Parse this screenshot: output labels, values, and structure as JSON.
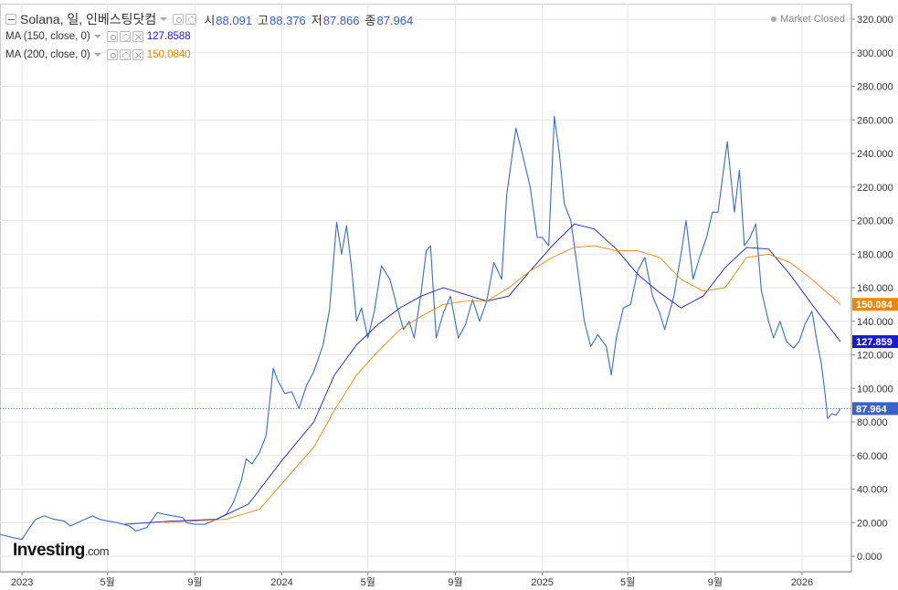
{
  "header": {
    "symbol_line": "Solana, 일, 인베스팅닷컴",
    "ohlc": [
      {
        "key": "시",
        "value": "88.091"
      },
      {
        "key": "고",
        "value": "88.376"
      },
      {
        "key": "저",
        "value": "87.866"
      },
      {
        "key": "종",
        "value": "87.964"
      }
    ],
    "market_status": "Market Closed"
  },
  "indicators": [
    {
      "label": "MA (150, close, 0)",
      "value": "127.8588",
      "color": "#1a1acc"
    },
    {
      "label": "MA (200, close, 0)",
      "value": "150.0840",
      "color": "#e8890c"
    }
  ],
  "price_tags": [
    {
      "value": "150.084",
      "y": 150.084,
      "color": "#e8890c"
    },
    {
      "value": "127.859",
      "y": 127.859,
      "color": "#1a1acc"
    },
    {
      "value": "87.964",
      "y": 87.964,
      "color": "#3b62c8"
    }
  ],
  "logo": {
    "brand": "Investing",
    "suffix": ".com"
  },
  "colors": {
    "price": "#3b6cc8",
    "ma150": "#1a1acc",
    "ma200": "#e8890c",
    "grid": "#e6e6e6"
  },
  "chart_data": {
    "type": "line",
    "ylim": [
      -10,
      330
    ],
    "y_ticks": [
      "0.000",
      "20.000",
      "40.000",
      "60.000",
      "80.000",
      "100.000",
      "120.000",
      "140.000",
      "160.000",
      "180.000",
      "200.000",
      "220.000",
      "240.000",
      "260.000",
      "280.000",
      "300.000",
      "320.000"
    ],
    "y_tick_values": [
      0,
      20,
      40,
      60,
      80,
      100,
      120,
      140,
      160,
      180,
      200,
      220,
      240,
      260,
      280,
      300,
      320
    ],
    "x_ticks": [
      {
        "label": "2023",
        "date": "2023-01-01"
      },
      {
        "label": "5월",
        "date": "2023-05-01"
      },
      {
        "label": "9월",
        "date": "2023-09-01"
      },
      {
        "label": "2024",
        "date": "2024-01-01"
      },
      {
        "label": "5월",
        "date": "2024-05-01"
      },
      {
        "label": "9월",
        "date": "2024-09-01"
      },
      {
        "label": "2025",
        "date": "2025-01-01"
      },
      {
        "label": "5월",
        "date": "2025-05-01"
      },
      {
        "label": "9월",
        "date": "2025-09-01"
      },
      {
        "label": "2026",
        "date": "2026-01-01"
      }
    ],
    "xlim": [
      "2022-12-01",
      "2026-02-24"
    ],
    "grid": true,
    "series": [
      {
        "key": "price",
        "points": [
          [
            "2022-12-01",
            13
          ],
          [
            "2022-12-20",
            11
          ],
          [
            "2023-01-01",
            10
          ],
          [
            "2023-01-10",
            16
          ],
          [
            "2023-01-20",
            22
          ],
          [
            "2023-02-01",
            24
          ],
          [
            "2023-02-15",
            22
          ],
          [
            "2023-03-01",
            21
          ],
          [
            "2023-03-10",
            18
          ],
          [
            "2023-03-25",
            21
          ],
          [
            "2023-04-10",
            24
          ],
          [
            "2023-04-20",
            22
          ],
          [
            "2023-05-01",
            21
          ],
          [
            "2023-05-15",
            20
          ],
          [
            "2023-06-01",
            18
          ],
          [
            "2023-06-10",
            15
          ],
          [
            "2023-06-25",
            17
          ],
          [
            "2023-07-10",
            26
          ],
          [
            "2023-07-20",
            25
          ],
          [
            "2023-08-01",
            24
          ],
          [
            "2023-08-15",
            23
          ],
          [
            "2023-08-20",
            20
          ],
          [
            "2023-09-01",
            19
          ],
          [
            "2023-09-15",
            19
          ],
          [
            "2023-10-01",
            22
          ],
          [
            "2023-10-15",
            25
          ],
          [
            "2023-10-25",
            32
          ],
          [
            "2023-11-05",
            45
          ],
          [
            "2023-11-12",
            58
          ],
          [
            "2023-11-20",
            55
          ],
          [
            "2023-12-01",
            62
          ],
          [
            "2023-12-10",
            72
          ],
          [
            "2023-12-20",
            112
          ],
          [
            "2023-12-26",
            105
          ],
          [
            "2024-01-05",
            97
          ],
          [
            "2024-01-15",
            98
          ],
          [
            "2024-01-25",
            88
          ],
          [
            "2024-02-05",
            102
          ],
          [
            "2024-02-15",
            110
          ],
          [
            "2024-02-28",
            126
          ],
          [
            "2024-03-08",
            147
          ],
          [
            "2024-03-18",
            199
          ],
          [
            "2024-03-25",
            180
          ],
          [
            "2024-04-01",
            197
          ],
          [
            "2024-04-08",
            172
          ],
          [
            "2024-04-15",
            140
          ],
          [
            "2024-04-22",
            148
          ],
          [
            "2024-05-01",
            130
          ],
          [
            "2024-05-10",
            146
          ],
          [
            "2024-05-20",
            173
          ],
          [
            "2024-06-01",
            165
          ],
          [
            "2024-06-10",
            150
          ],
          [
            "2024-06-20",
            135
          ],
          [
            "2024-06-28",
            140
          ],
          [
            "2024-07-05",
            130
          ],
          [
            "2024-07-15",
            158
          ],
          [
            "2024-07-22",
            182
          ],
          [
            "2024-07-28",
            185
          ],
          [
            "2024-08-05",
            130
          ],
          [
            "2024-08-15",
            145
          ],
          [
            "2024-08-25",
            155
          ],
          [
            "2024-09-05",
            130
          ],
          [
            "2024-09-15",
            138
          ],
          [
            "2024-09-25",
            153
          ],
          [
            "2024-10-05",
            140
          ],
          [
            "2024-10-15",
            152
          ],
          [
            "2024-10-25",
            175
          ],
          [
            "2024-11-05",
            165
          ],
          [
            "2024-11-12",
            215
          ],
          [
            "2024-11-20",
            240
          ],
          [
            "2024-11-25",
            255
          ],
          [
            "2024-12-05",
            238
          ],
          [
            "2024-12-15",
            220
          ],
          [
            "2024-12-25",
            190
          ],
          [
            "2025-01-01",
            190
          ],
          [
            "2025-01-10",
            185
          ],
          [
            "2025-01-18",
            262
          ],
          [
            "2025-01-25",
            240
          ],
          [
            "2025-02-01",
            210
          ],
          [
            "2025-02-10",
            200
          ],
          [
            "2025-02-20",
            170
          ],
          [
            "2025-03-01",
            140
          ],
          [
            "2025-03-10",
            125
          ],
          [
            "2025-03-20",
            132
          ],
          [
            "2025-04-01",
            125
          ],
          [
            "2025-04-08",
            108
          ],
          [
            "2025-04-15",
            130
          ],
          [
            "2025-04-25",
            148
          ],
          [
            "2025-05-05",
            150
          ],
          [
            "2025-05-15",
            170
          ],
          [
            "2025-05-25",
            178
          ],
          [
            "2025-06-05",
            155
          ],
          [
            "2025-06-15",
            145
          ],
          [
            "2025-06-22",
            135
          ],
          [
            "2025-07-05",
            155
          ],
          [
            "2025-07-15",
            180
          ],
          [
            "2025-07-22",
            200
          ],
          [
            "2025-08-01",
            165
          ],
          [
            "2025-08-10",
            178
          ],
          [
            "2025-08-20",
            190
          ],
          [
            "2025-08-28",
            205
          ],
          [
            "2025-09-05",
            205
          ],
          [
            "2025-09-18",
            247
          ],
          [
            "2025-09-28",
            205
          ],
          [
            "2025-10-05",
            230
          ],
          [
            "2025-10-12",
            185
          ],
          [
            "2025-10-20",
            190
          ],
          [
            "2025-10-28",
            198
          ],
          [
            "2025-11-05",
            158
          ],
          [
            "2025-11-15",
            140
          ],
          [
            "2025-11-22",
            130
          ],
          [
            "2025-12-01",
            140
          ],
          [
            "2025-12-10",
            128
          ],
          [
            "2025-12-20",
            124
          ],
          [
            "2025-12-28",
            128
          ],
          [
            "2026-01-05",
            138
          ],
          [
            "2026-01-15",
            146
          ],
          [
            "2026-01-22",
            128
          ],
          [
            "2026-01-28",
            115
          ],
          [
            "2026-02-02",
            98
          ],
          [
            "2026-02-06",
            82
          ],
          [
            "2026-02-12",
            85
          ],
          [
            "2026-02-18",
            84
          ],
          [
            "2026-02-24",
            87.964
          ]
        ]
      },
      {
        "key": "ma150",
        "points": [
          [
            "2023-05-25",
            19
          ],
          [
            "2023-08-01",
            21
          ],
          [
            "2023-10-01",
            22
          ],
          [
            "2023-11-15",
            31
          ],
          [
            "2024-01-01",
            57
          ],
          [
            "2024-02-15",
            80
          ],
          [
            "2024-03-15",
            108
          ],
          [
            "2024-04-15",
            126
          ],
          [
            "2024-05-15",
            138
          ],
          [
            "2024-06-15",
            148
          ],
          [
            "2024-07-15",
            155
          ],
          [
            "2024-08-15",
            160
          ],
          [
            "2024-09-15",
            156
          ],
          [
            "2024-10-15",
            152
          ],
          [
            "2024-11-15",
            155
          ],
          [
            "2024-12-15",
            170
          ],
          [
            "2025-01-15",
            185
          ],
          [
            "2025-02-15",
            198
          ],
          [
            "2025-03-15",
            195
          ],
          [
            "2025-04-15",
            183
          ],
          [
            "2025-05-15",
            168
          ],
          [
            "2025-06-15",
            157
          ],
          [
            "2025-07-15",
            148
          ],
          [
            "2025-08-15",
            155
          ],
          [
            "2025-09-15",
            172
          ],
          [
            "2025-10-15",
            184
          ],
          [
            "2025-11-15",
            183
          ],
          [
            "2025-12-15",
            168
          ],
          [
            "2026-01-15",
            150
          ],
          [
            "2026-02-24",
            127.859
          ]
        ]
      },
      {
        "key": "ma200",
        "points": [
          [
            "2023-07-20",
            20
          ],
          [
            "2023-09-01",
            21
          ],
          [
            "2023-10-15",
            22
          ],
          [
            "2023-12-01",
            28
          ],
          [
            "2024-01-15",
            50
          ],
          [
            "2024-02-15",
            65
          ],
          [
            "2024-03-15",
            87
          ],
          [
            "2024-04-15",
            108
          ],
          [
            "2024-05-15",
            122
          ],
          [
            "2024-06-15",
            135
          ],
          [
            "2024-07-15",
            143
          ],
          [
            "2024-08-15",
            150
          ],
          [
            "2024-09-15",
            152
          ],
          [
            "2024-10-15",
            152
          ],
          [
            "2024-11-15",
            160
          ],
          [
            "2024-12-15",
            170
          ],
          [
            "2025-01-15",
            178
          ],
          [
            "2025-02-15",
            184
          ],
          [
            "2025-03-15",
            185
          ],
          [
            "2025-04-15",
            182
          ],
          [
            "2025-05-15",
            182
          ],
          [
            "2025-06-15",
            178
          ],
          [
            "2025-07-15",
            165
          ],
          [
            "2025-08-15",
            158
          ],
          [
            "2025-09-15",
            160
          ],
          [
            "2025-10-15",
            178
          ],
          [
            "2025-11-15",
            180
          ],
          [
            "2025-12-15",
            175
          ],
          [
            "2026-01-15",
            165
          ],
          [
            "2026-02-24",
            150.084
          ]
        ]
      }
    ]
  }
}
